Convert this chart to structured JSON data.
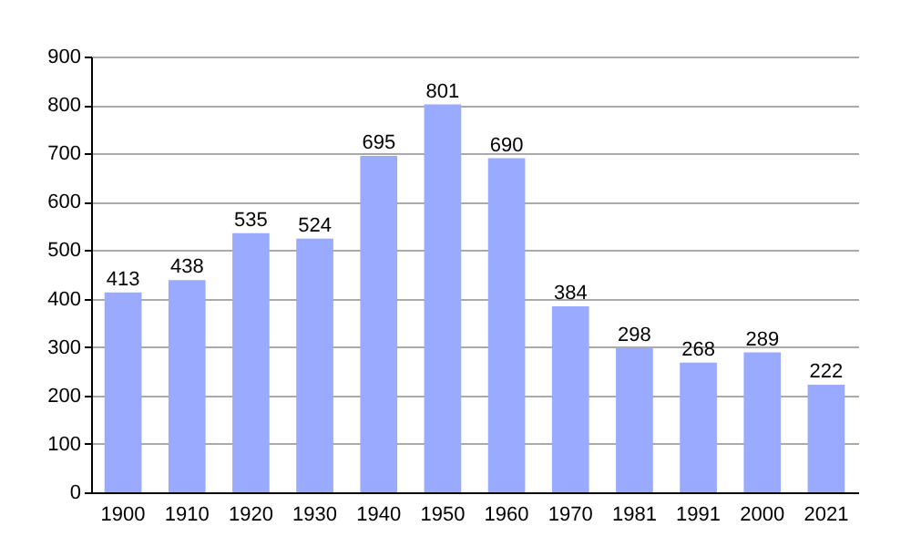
{
  "chart_data": {
    "type": "bar",
    "categories": [
      "1900",
      "1910",
      "1920",
      "1930",
      "1940",
      "1950",
      "1960",
      "1970",
      "1981",
      "1991",
      "2000",
      "2021"
    ],
    "values": [
      413,
      438,
      535,
      524,
      695,
      801,
      690,
      384,
      298,
      268,
      289,
      222
    ],
    "color": "#99aaff",
    "ylim": [
      0,
      900
    ],
    "yticks": [
      0,
      100,
      200,
      300,
      400,
      500,
      600,
      700,
      800,
      900
    ],
    "grid": true,
    "data_labels": true
  }
}
